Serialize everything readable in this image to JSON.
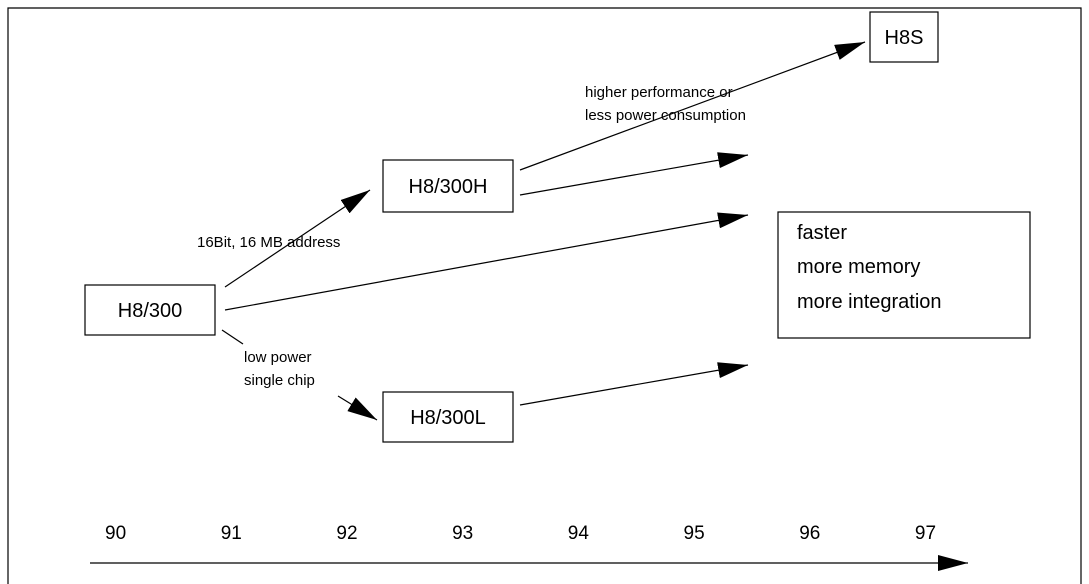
{
  "nodes": [
    {
      "id": "h8-300",
      "label": "H8/300"
    },
    {
      "id": "h8-300h",
      "label": "H8/300H"
    },
    {
      "id": "h8-300l",
      "label": "H8/300L"
    },
    {
      "id": "h8s",
      "label": "H8S"
    }
  ],
  "edge_labels": {
    "upper": "16Bit, 16 MB address",
    "lower": [
      "low power",
      "single chip"
    ],
    "h8s": [
      "higher performance or",
      "less power consumption"
    ]
  },
  "trend_box": [
    "faster",
    "more memory",
    "more integration"
  ],
  "timeline": [
    "90",
    "91",
    "92",
    "93",
    "94",
    "95",
    "96",
    "97"
  ]
}
